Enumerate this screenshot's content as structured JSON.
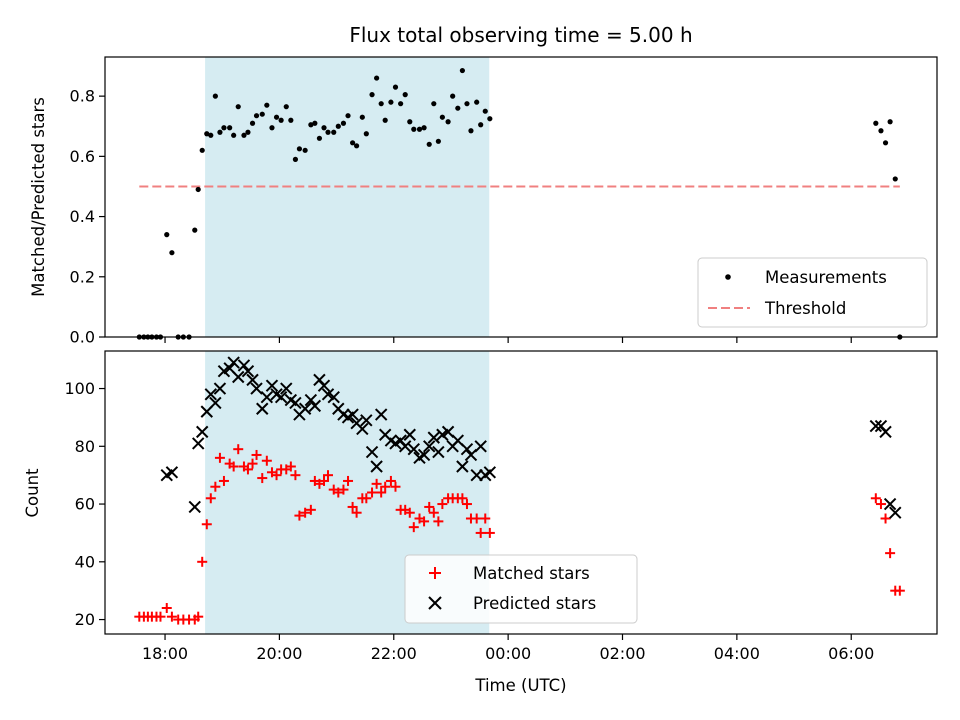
{
  "chart_data": {
    "title": "Flux total observing time = 5.00 h",
    "xlabel": "Time (UTC)",
    "x_unit": "hours since 00:00 UTC (values after midnight expressed as 24+h)",
    "xlim": [
      16.95,
      31.5
    ],
    "x_ticks": [
      {
        "value": 18,
        "label": "18:00"
      },
      {
        "value": 20,
        "label": "20:00"
      },
      {
        "value": 22,
        "label": "22:00"
      },
      {
        "value": 24,
        "label": "00:00"
      },
      {
        "value": 26,
        "label": "02:00"
      },
      {
        "value": 28,
        "label": "04:00"
      },
      {
        "value": 30,
        "label": "06:00"
      }
    ],
    "shaded_interval": {
      "x": [
        18.7,
        23.67
      ],
      "color": "#d4ebf1"
    },
    "panels": [
      {
        "type": "scatter",
        "ylabel": "Matched/Predicted stars",
        "ylim": [
          0,
          0.93
        ],
        "y_ticks": [
          0.0,
          0.2,
          0.4,
          0.6,
          0.8
        ],
        "y_tick_labels": [
          "0.0",
          "0.2",
          "0.4",
          "0.6",
          "0.8"
        ],
        "legend_position": "bottom-right",
        "series": [
          {
            "name": "Measurements",
            "marker": "dot",
            "color": "#000000",
            "x": [
              17.55,
              17.63,
              17.7,
              17.77,
              17.85,
              17.92,
              18.03,
              18.12,
              18.23,
              18.32,
              18.42,
              18.52,
              18.58,
              18.65,
              18.73,
              18.8,
              18.88,
              18.96,
              19.03,
              19.13,
              19.2,
              19.28,
              19.38,
              19.45,
              19.53,
              19.6,
              19.7,
              19.78,
              19.87,
              19.95,
              20.03,
              20.12,
              20.2,
              20.28,
              20.35,
              20.45,
              20.55,
              20.62,
              20.7,
              20.78,
              20.85,
              20.95,
              21.03,
              21.12,
              21.2,
              21.28,
              21.35,
              21.45,
              21.52,
              21.62,
              21.7,
              21.78,
              21.85,
              21.95,
              22.03,
              22.12,
              22.2,
              22.28,
              22.35,
              22.45,
              22.53,
              22.62,
              22.7,
              22.78,
              22.85,
              22.95,
              23.03,
              23.12,
              23.2,
              23.28,
              23.35,
              23.45,
              23.52,
              23.6,
              23.68,
              30.43,
              30.52,
              30.6,
              30.68,
              30.77,
              30.85
            ],
            "y": [
              0.0,
              0.0,
              0.0,
              0.0,
              0.0,
              0.0,
              0.34,
              0.28,
              0.0,
              0.0,
              0.0,
              0.355,
              0.49,
              0.62,
              0.675,
              0.67,
              0.8,
              0.68,
              0.695,
              0.695,
              0.67,
              0.765,
              0.67,
              0.68,
              0.71,
              0.735,
              0.74,
              0.77,
              0.695,
              0.73,
              0.72,
              0.765,
              0.72,
              0.59,
              0.625,
              0.62,
              0.705,
              0.71,
              0.66,
              0.695,
              0.68,
              0.68,
              0.7,
              0.71,
              0.735,
              0.645,
              0.635,
              0.73,
              0.675,
              0.805,
              0.86,
              0.775,
              0.72,
              0.78,
              0.83,
              0.775,
              0.805,
              0.715,
              0.69,
              0.69,
              0.695,
              0.64,
              0.775,
              0.65,
              0.73,
              0.715,
              0.8,
              0.76,
              0.885,
              0.775,
              0.685,
              0.78,
              0.705,
              0.75,
              0.725,
              0.71,
              0.685,
              0.645,
              0.715,
              0.525,
              0.0
            ]
          },
          {
            "name": "Threshold",
            "type": "line",
            "style": "dashed",
            "color": "#f08080",
            "x": [
              17.55,
              30.85
            ],
            "y": [
              0.5,
              0.5
            ]
          }
        ]
      },
      {
        "type": "scatter",
        "ylabel": "Count",
        "ylim": [
          15,
          113
        ],
        "y_ticks": [
          20,
          40,
          60,
          80,
          100
        ],
        "y_tick_labels": [
          "20",
          "40",
          "60",
          "80",
          "100"
        ],
        "legend_position": "lower-center",
        "series": [
          {
            "name": "Matched stars",
            "marker": "plus",
            "color": "#ff0000",
            "x": [
              17.55,
              17.63,
              17.7,
              17.77,
              17.85,
              17.92,
              18.03,
              18.12,
              18.23,
              18.32,
              18.42,
              18.52,
              18.58,
              18.65,
              18.73,
              18.8,
              18.88,
              18.96,
              19.03,
              19.13,
              19.2,
              19.28,
              19.38,
              19.45,
              19.53,
              19.6,
              19.7,
              19.78,
              19.87,
              19.95,
              20.03,
              20.12,
              20.2,
              20.28,
              20.35,
              20.45,
              20.55,
              20.62,
              20.7,
              20.78,
              20.85,
              20.95,
              21.03,
              21.12,
              21.2,
              21.28,
              21.35,
              21.45,
              21.52,
              21.62,
              21.7,
              21.78,
              21.85,
              21.95,
              22.03,
              22.12,
              22.2,
              22.28,
              22.35,
              22.45,
              22.53,
              22.62,
              22.7,
              22.78,
              22.85,
              22.95,
              23.03,
              23.12,
              23.2,
              23.28,
              23.35,
              23.45,
              23.52,
              23.6,
              23.68,
              30.43,
              30.52,
              30.6,
              30.68,
              30.77,
              30.85
            ],
            "y": [
              21,
              21,
              21,
              21,
              21,
              21,
              24,
              21,
              20,
              20,
              20,
              20,
              21,
              40,
              53,
              62,
              66,
              76,
              68,
              74,
              73,
              79,
              73,
              72,
              74,
              77,
              69,
              75,
              71,
              70,
              72,
              72,
              73,
              70,
              56,
              57,
              58,
              68,
              67,
              68,
              70,
              65,
              64,
              65,
              68,
              59,
              57,
              62,
              62,
              64,
              67,
              64,
              66,
              68,
              66,
              58,
              58,
              57,
              52,
              55,
              54,
              59,
              57,
              54,
              60,
              62,
              62,
              62,
              62,
              60,
              55,
              55,
              50,
              55,
              50,
              62,
              60,
              55,
              43,
              30,
              30
            ]
          },
          {
            "name": "Predicted stars",
            "marker": "x",
            "color": "#000000",
            "x": [
              18.03,
              18.12,
              18.52,
              18.58,
              18.65,
              18.73,
              18.8,
              18.88,
              18.96,
              19.03,
              19.13,
              19.2,
              19.28,
              19.38,
              19.45,
              19.53,
              19.6,
              19.7,
              19.78,
              19.87,
              19.95,
              20.03,
              20.12,
              20.2,
              20.28,
              20.35,
              20.45,
              20.55,
              20.62,
              20.7,
              20.78,
              20.85,
              20.95,
              21.03,
              21.12,
              21.2,
              21.28,
              21.35,
              21.45,
              21.52,
              21.62,
              21.7,
              21.78,
              21.85,
              21.95,
              22.03,
              22.12,
              22.2,
              22.28,
              22.35,
              22.45,
              22.53,
              22.62,
              22.7,
              22.78,
              22.85,
              22.95,
              23.03,
              23.12,
              23.2,
              23.28,
              23.35,
              23.45,
              23.52,
              23.6,
              23.68,
              30.43,
              30.52,
              30.6,
              30.68,
              30.77
            ],
            "y": [
              70,
              71,
              59,
              81,
              85,
              92,
              98,
              95,
              100,
              106,
              107,
              109,
              104,
              108,
              106,
              103,
              100,
              93,
              97,
              101,
              98,
              97,
              100,
              96,
              95,
              91,
              93,
              96,
              94,
              103,
              101,
              98,
              97,
              93,
              91,
              90,
              91,
              88,
              86,
              89,
              78,
              73,
              91,
              84,
              82,
              81,
              82,
              80,
              84,
              79,
              76,
              77,
              80,
              83,
              78,
              84,
              85,
              80,
              82,
              73,
              79,
              77,
              70,
              80,
              70,
              71,
              87,
              87,
              85,
              60,
              57
            ]
          }
        ]
      }
    ]
  }
}
